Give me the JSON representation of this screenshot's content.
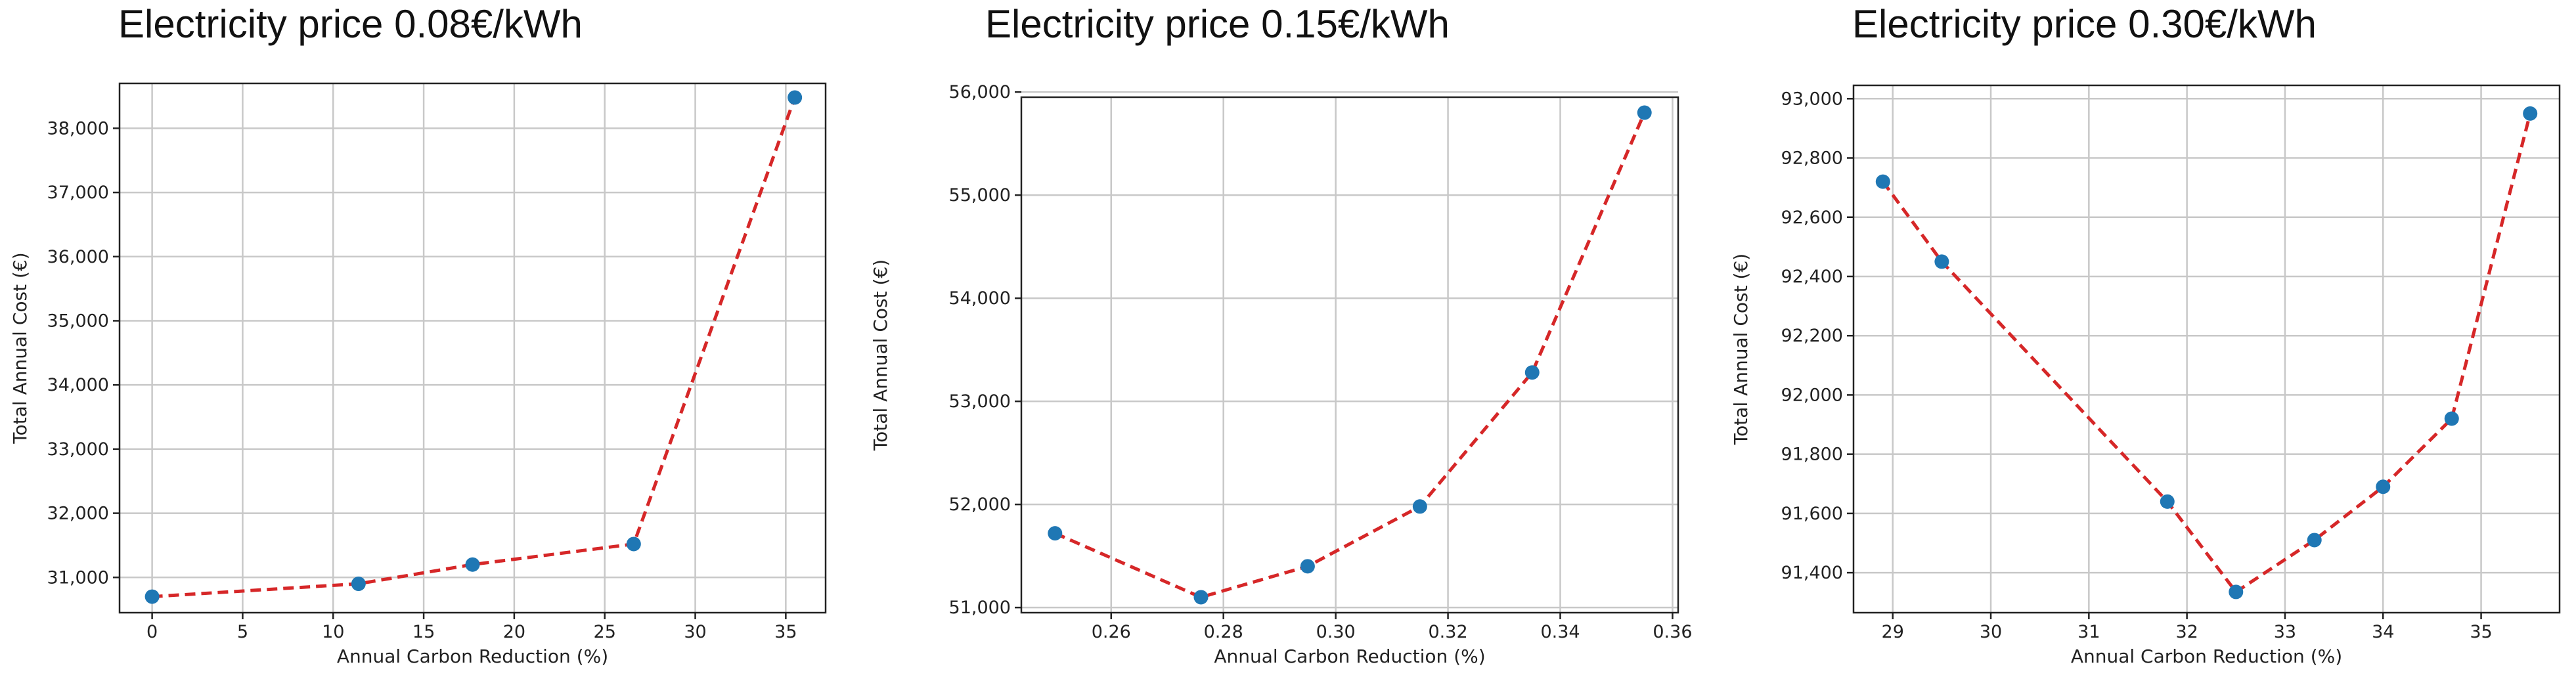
{
  "colors": {
    "line": "#d62728",
    "marker": "#1f77b4",
    "grid": "#c8c8c8",
    "frame": "#222222"
  },
  "chart_data": [
    {
      "type": "line",
      "title": "Electricity price 0.08€/kWh",
      "xlabel": "Annual Carbon Reduction (%)",
      "ylabel": "Total Annual Cost (€)",
      "xlim": [
        -1.8,
        37.2
      ],
      "ylim": [
        30450,
        38700
      ],
      "xticks": [
        0,
        5,
        10,
        15,
        20,
        25,
        30,
        35
      ],
      "xtick_labels": [
        "0",
        "5",
        "10",
        "15",
        "20",
        "25",
        "30",
        "35"
      ],
      "yticks": [
        31000,
        32000,
        33000,
        34000,
        35000,
        36000,
        37000,
        38000
      ],
      "ytick_labels": [
        "31,000",
        "32,000",
        "33,000",
        "34,000",
        "35,000",
        "36,000",
        "37,000",
        "38,000"
      ],
      "x": [
        0,
        11.4,
        17.7,
        26.6,
        35.5
      ],
      "y": [
        30700,
        30900,
        31200,
        31520,
        38480
      ],
      "grid": true,
      "line_style": "dashed"
    },
    {
      "type": "line",
      "title": "Electricity price 0.15€/kWh",
      "xlabel": "Annual Carbon Reduction (%)",
      "ylabel": "Total Annual Cost (€)",
      "xlim": [
        0.244,
        0.361
      ],
      "ylim": [
        50950,
        55950
      ],
      "xticks": [
        0.26,
        0.28,
        0.3,
        0.32,
        0.34,
        0.36
      ],
      "xtick_labels": [
        "0.26",
        "0.28",
        "0.30",
        "0.32",
        "0.34",
        "0.36"
      ],
      "yticks": [
        51000,
        52000,
        53000,
        54000,
        55000,
        56000
      ],
      "ytick_labels": [
        "51,000",
        "52,000",
        "53,000",
        "54,000",
        "55,000",
        "56,000"
      ],
      "x": [
        0.25,
        0.276,
        0.295,
        0.315,
        0.335,
        0.355
      ],
      "y": [
        51720,
        51100,
        51400,
        51980,
        53280,
        55800
      ],
      "grid": true,
      "line_style": "dashed"
    },
    {
      "type": "line",
      "title": "Electricity price 0.30€/kWh",
      "xlabel": "Annual Carbon Reduction (%)",
      "ylabel": "Total Annual Cost (€)",
      "xlim": [
        28.6,
        35.8
      ],
      "ylim": [
        91265,
        93045
      ],
      "xticks": [
        29,
        30,
        31,
        32,
        33,
        34,
        35
      ],
      "xtick_labels": [
        "29",
        "30",
        "31",
        "32",
        "33",
        "34",
        "35"
      ],
      "yticks": [
        91400,
        91600,
        91800,
        92000,
        92200,
        92400,
        92600,
        92800,
        93000
      ],
      "ytick_labels": [
        "91,400",
        "91,600",
        "91,800",
        "92,000",
        "92,200",
        "92,400",
        "92,600",
        "92,800",
        "93,000"
      ],
      "x": [
        28.9,
        29.5,
        31.8,
        32.5,
        33.3,
        34.0,
        34.7,
        35.5
      ],
      "y": [
        92720,
        92450,
        91640,
        91335,
        91510,
        91690,
        91920,
        92950
      ],
      "grid": true,
      "line_style": "dashed"
    }
  ]
}
